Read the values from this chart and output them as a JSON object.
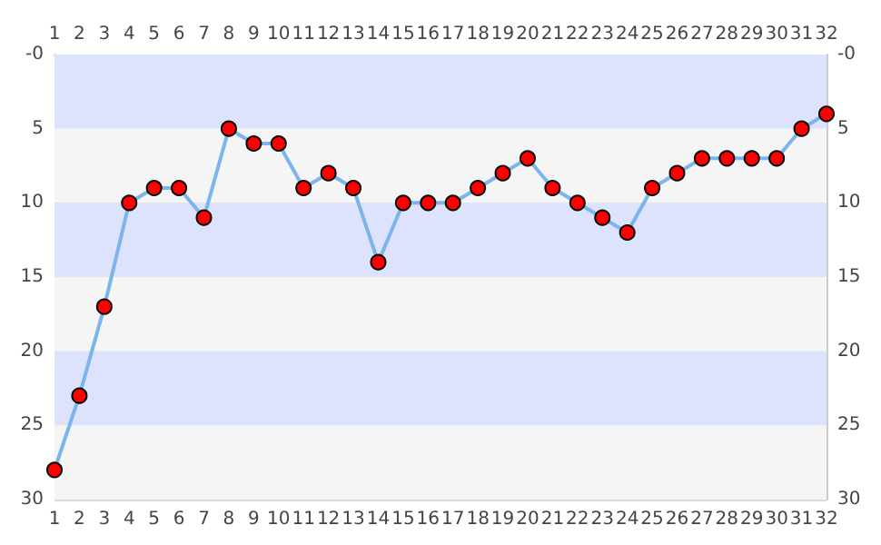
{
  "chart_data": {
    "type": "line",
    "x": [
      1,
      2,
      3,
      4,
      5,
      6,
      7,
      8,
      9,
      10,
      11,
      12,
      13,
      14,
      15,
      16,
      17,
      18,
      19,
      20,
      21,
      22,
      23,
      24,
      25,
      26,
      27,
      28,
      29,
      30,
      31,
      32
    ],
    "series": [
      {
        "color": "#7cb5ec",
        "colors": [
          "#ff0000",
          "#ff0000",
          "#ff0000",
          "#ff0000",
          "#ff0000",
          "#ff0000",
          "#ff0000",
          "#ff0000",
          "#ff0000",
          "#ff0000",
          "#ff0000",
          "#ff0000",
          "#ff0000",
          "#ff0000",
          "#ff0000",
          "#ff0000",
          "#ff0000",
          "#ff0000",
          "#ff0000",
          "#ff0000",
          "#ff0000",
          "#ff0000",
          "#ff0000",
          "#ff0000",
          "#ff0000",
          "#ff0000",
          "#ff0000",
          "#ff0000",
          "#ff0000",
          "#ff0000",
          "#ff0000",
          "#ff0000"
        ],
        "values": [
          28,
          23,
          17,
          10,
          9,
          9,
          11,
          5,
          6,
          6,
          9,
          8,
          9,
          14,
          10,
          10,
          10,
          9,
          8,
          7,
          9,
          10,
          11,
          12,
          9,
          8,
          7,
          7,
          7,
          7,
          5,
          4
        ]
      }
    ],
    "xlim": [
      1,
      32
    ],
    "xticks": [
      1,
      2,
      3,
      4,
      5,
      6,
      7,
      8,
      9,
      10,
      11,
      12,
      13,
      14,
      15,
      16,
      17,
      18,
      19,
      20,
      21,
      22,
      23,
      24,
      25,
      26,
      27,
      28,
      29,
      30,
      31,
      32
    ],
    "x2lim": [
      1,
      32
    ],
    "x2ticks": [
      1,
      2,
      3,
      4,
      5,
      6,
      7,
      8,
      9,
      10,
      11,
      12,
      13,
      14,
      15,
      16,
      17,
      18,
      19,
      20,
      21,
      22,
      23,
      24,
      25,
      26,
      27,
      28,
      29,
      30,
      31,
      32
    ],
    "ylim": [
      30,
      0
    ],
    "yticks": [
      {
        "value": 0,
        "label": "-0"
      },
      5,
      10,
      15,
      20,
      25,
      30
    ],
    "y2lim": [
      30,
      0
    ],
    "y2ticks": [
      {
        "value": 0,
        "label": "-0"
      },
      5,
      10,
      15,
      20,
      25,
      30
    ],
    "bands": [
      {
        "axis": "y",
        "from": 0,
        "to": 5,
        "color": "#dde3fd"
      },
      {
        "axis": "y",
        "from": 5,
        "to": 10,
        "color": "#f5f5f5"
      },
      {
        "axis": "y",
        "from": 10,
        "to": 15,
        "color": "#dde3fd"
      },
      {
        "axis": "y",
        "from": 15,
        "to": 20,
        "color": "#f5f5f5"
      },
      {
        "axis": "y",
        "from": 20,
        "to": 25,
        "color": "#dde3fd"
      },
      {
        "axis": "y",
        "from": 25,
        "to": 30,
        "color": "#f5f5f5"
      }
    ],
    "grid": "y",
    "marker": "circle",
    "line_style": "solid"
  }
}
